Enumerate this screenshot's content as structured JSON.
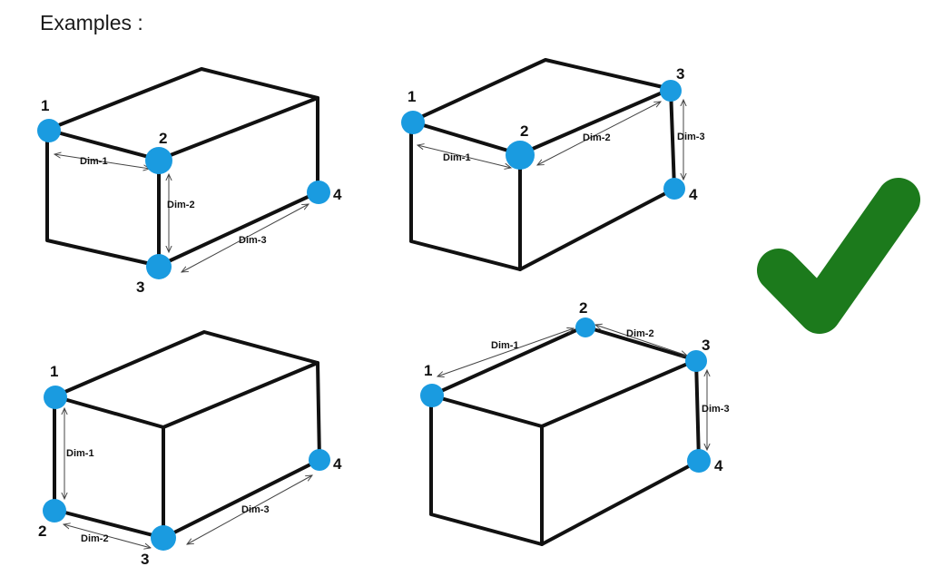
{
  "title": "Examples :",
  "examples": [
    {
      "points": [
        "1",
        "2",
        "3",
        "4"
      ],
      "dims": [
        "Dim-1",
        "Dim-2",
        "Dim-3"
      ]
    },
    {
      "points": [
        "1",
        "2",
        "3",
        "4"
      ],
      "dims": [
        "Dim-1",
        "Dim-2",
        "Dim-3"
      ]
    },
    {
      "points": [
        "1",
        "2",
        "3",
        "4"
      ],
      "dims": [
        "Dim-1",
        "Dim-2",
        "Dim-3"
      ]
    },
    {
      "points": [
        "1",
        "2",
        "3",
        "4"
      ],
      "dims": [
        "Dim-1",
        "Dim-2",
        "Dim-3"
      ]
    }
  ],
  "colors": {
    "point": "#1a9be0",
    "edge": "#111111",
    "check": "#1c7a1c"
  },
  "icons": {
    "check": "checkmark-icon"
  }
}
